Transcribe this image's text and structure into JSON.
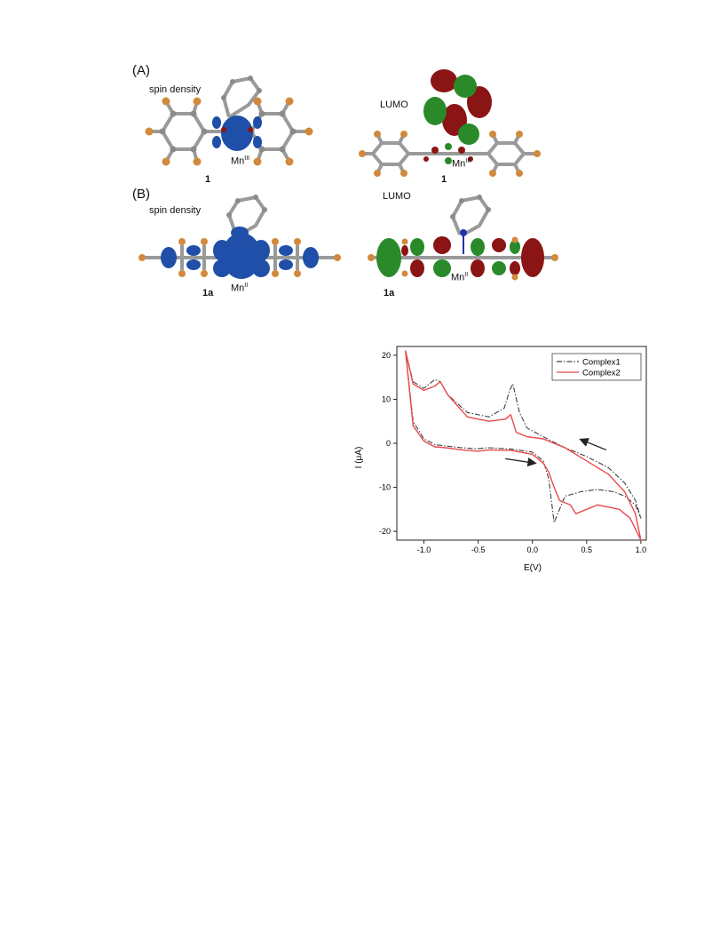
{
  "figure_a": {
    "label": "(A)",
    "left": {
      "caption": "spin density",
      "compound": "1",
      "metal": "Mn",
      "oxidation": "III"
    },
    "right": {
      "caption": "LUMO",
      "compound": "1",
      "metal": "Mn",
      "oxidation": "III"
    }
  },
  "figure_b": {
    "label": "(B)",
    "left": {
      "caption": "spin density",
      "compound": "1a",
      "metal": "Mn",
      "oxidation": "II"
    },
    "right": {
      "caption": "LUMO",
      "compound": "1a",
      "metal": "Mn",
      "oxidation": "II"
    }
  },
  "colors": {
    "spin": "#1f4fa8",
    "lobe_red": "#8b1414",
    "lobe_green": "#2a8a2a",
    "carbon": "#9a9a9a",
    "fluorine": "#d18a3c",
    "nitrogen": "#2233aa",
    "complex1": "#404040",
    "complex2": "#e84a4a"
  },
  "chart_data": {
    "type": "line",
    "title": "",
    "xlabel": "E(V)",
    "ylabel": "I (μA)",
    "xlim": [
      -1.25,
      1.05
    ],
    "ylim": [
      -22,
      22
    ],
    "x_ticks": [
      -1.0,
      -0.5,
      0.0,
      0.5,
      1.0
    ],
    "x_tick_labels": [
      "-1.0",
      "-0.5",
      "0.0",
      "0.5",
      "1.0"
    ],
    "y_ticks": [
      -20,
      -10,
      0,
      10,
      20
    ],
    "y_tick_labels": [
      "-20",
      "-10",
      "0",
      "10",
      "20"
    ],
    "legend_position": "top-right",
    "series": [
      {
        "name": "Complex1",
        "style": "dash-dot",
        "color": "#404040",
        "x": [
          -0.5,
          -0.4,
          -0.2,
          0.0,
          0.1,
          0.15,
          0.2,
          0.25,
          0.3,
          0.45,
          0.6,
          0.75,
          0.85,
          0.95,
          1.0,
          0.95,
          0.85,
          0.7,
          0.5,
          0.3,
          0.1,
          -0.05,
          -0.12,
          -0.18,
          -0.21,
          -0.26,
          -0.4,
          -0.6,
          -0.78,
          -0.85,
          -0.9,
          -1.0,
          -1.1,
          -1.17,
          -1.1,
          -1.0,
          -0.9,
          -0.8,
          -0.65,
          -0.5
        ],
        "y": [
          -1.2,
          -1.0,
          -1.3,
          -2.0,
          -4.0,
          -8.0,
          -18.0,
          -15.0,
          -12.0,
          -11.0,
          -10.5,
          -11.0,
          -12.0,
          -14.0,
          -17.0,
          -13.0,
          -9.0,
          -5.5,
          -3.0,
          -1.0,
          1.5,
          3.5,
          7.0,
          13.5,
          12.0,
          8.0,
          6.0,
          7.0,
          11.0,
          14.0,
          14.5,
          12.5,
          14.0,
          21.0,
          5.0,
          1.0,
          -0.3,
          -0.6,
          -1.0,
          -1.3
        ]
      },
      {
        "name": "Complex2",
        "style": "solid",
        "color": "#e84a4a",
        "x": [
          -0.5,
          -0.4,
          -0.2,
          0.0,
          0.1,
          0.15,
          0.2,
          0.25,
          0.3,
          0.35,
          0.4,
          0.5,
          0.6,
          0.7,
          0.8,
          0.9,
          1.0,
          0.95,
          0.85,
          0.7,
          0.5,
          0.3,
          0.1,
          -0.05,
          -0.15,
          -0.2,
          -0.25,
          -0.4,
          -0.6,
          -0.78,
          -0.85,
          -0.9,
          -1.0,
          -1.1,
          -1.17,
          -1.1,
          -1.0,
          -0.9,
          -0.8,
          -0.65,
          -0.5
        ],
        "y": [
          -1.8,
          -1.5,
          -1.6,
          -2.5,
          -4.5,
          -6.5,
          -10.0,
          -13.0,
          -13.5,
          -14.0,
          -16.0,
          -15.0,
          -14.0,
          -14.5,
          -15.0,
          -17.0,
          -22.0,
          -16.0,
          -11.0,
          -7.0,
          -4.0,
          -1.0,
          1.0,
          1.5,
          2.5,
          6.5,
          5.5,
          5.0,
          6.0,
          11.0,
          14.0,
          13.0,
          12.0,
          13.5,
          21.0,
          4.0,
          0.5,
          -0.8,
          -1.0,
          -1.5,
          -1.8
        ]
      }
    ],
    "arrows": [
      {
        "from": [
          -0.25,
          -3.5
        ],
        "to": [
          0.02,
          -4.5
        ],
        "direction": "right"
      },
      {
        "from": [
          0.68,
          -1.5
        ],
        "to": [
          0.45,
          0.8
        ],
        "direction": "left"
      }
    ]
  }
}
